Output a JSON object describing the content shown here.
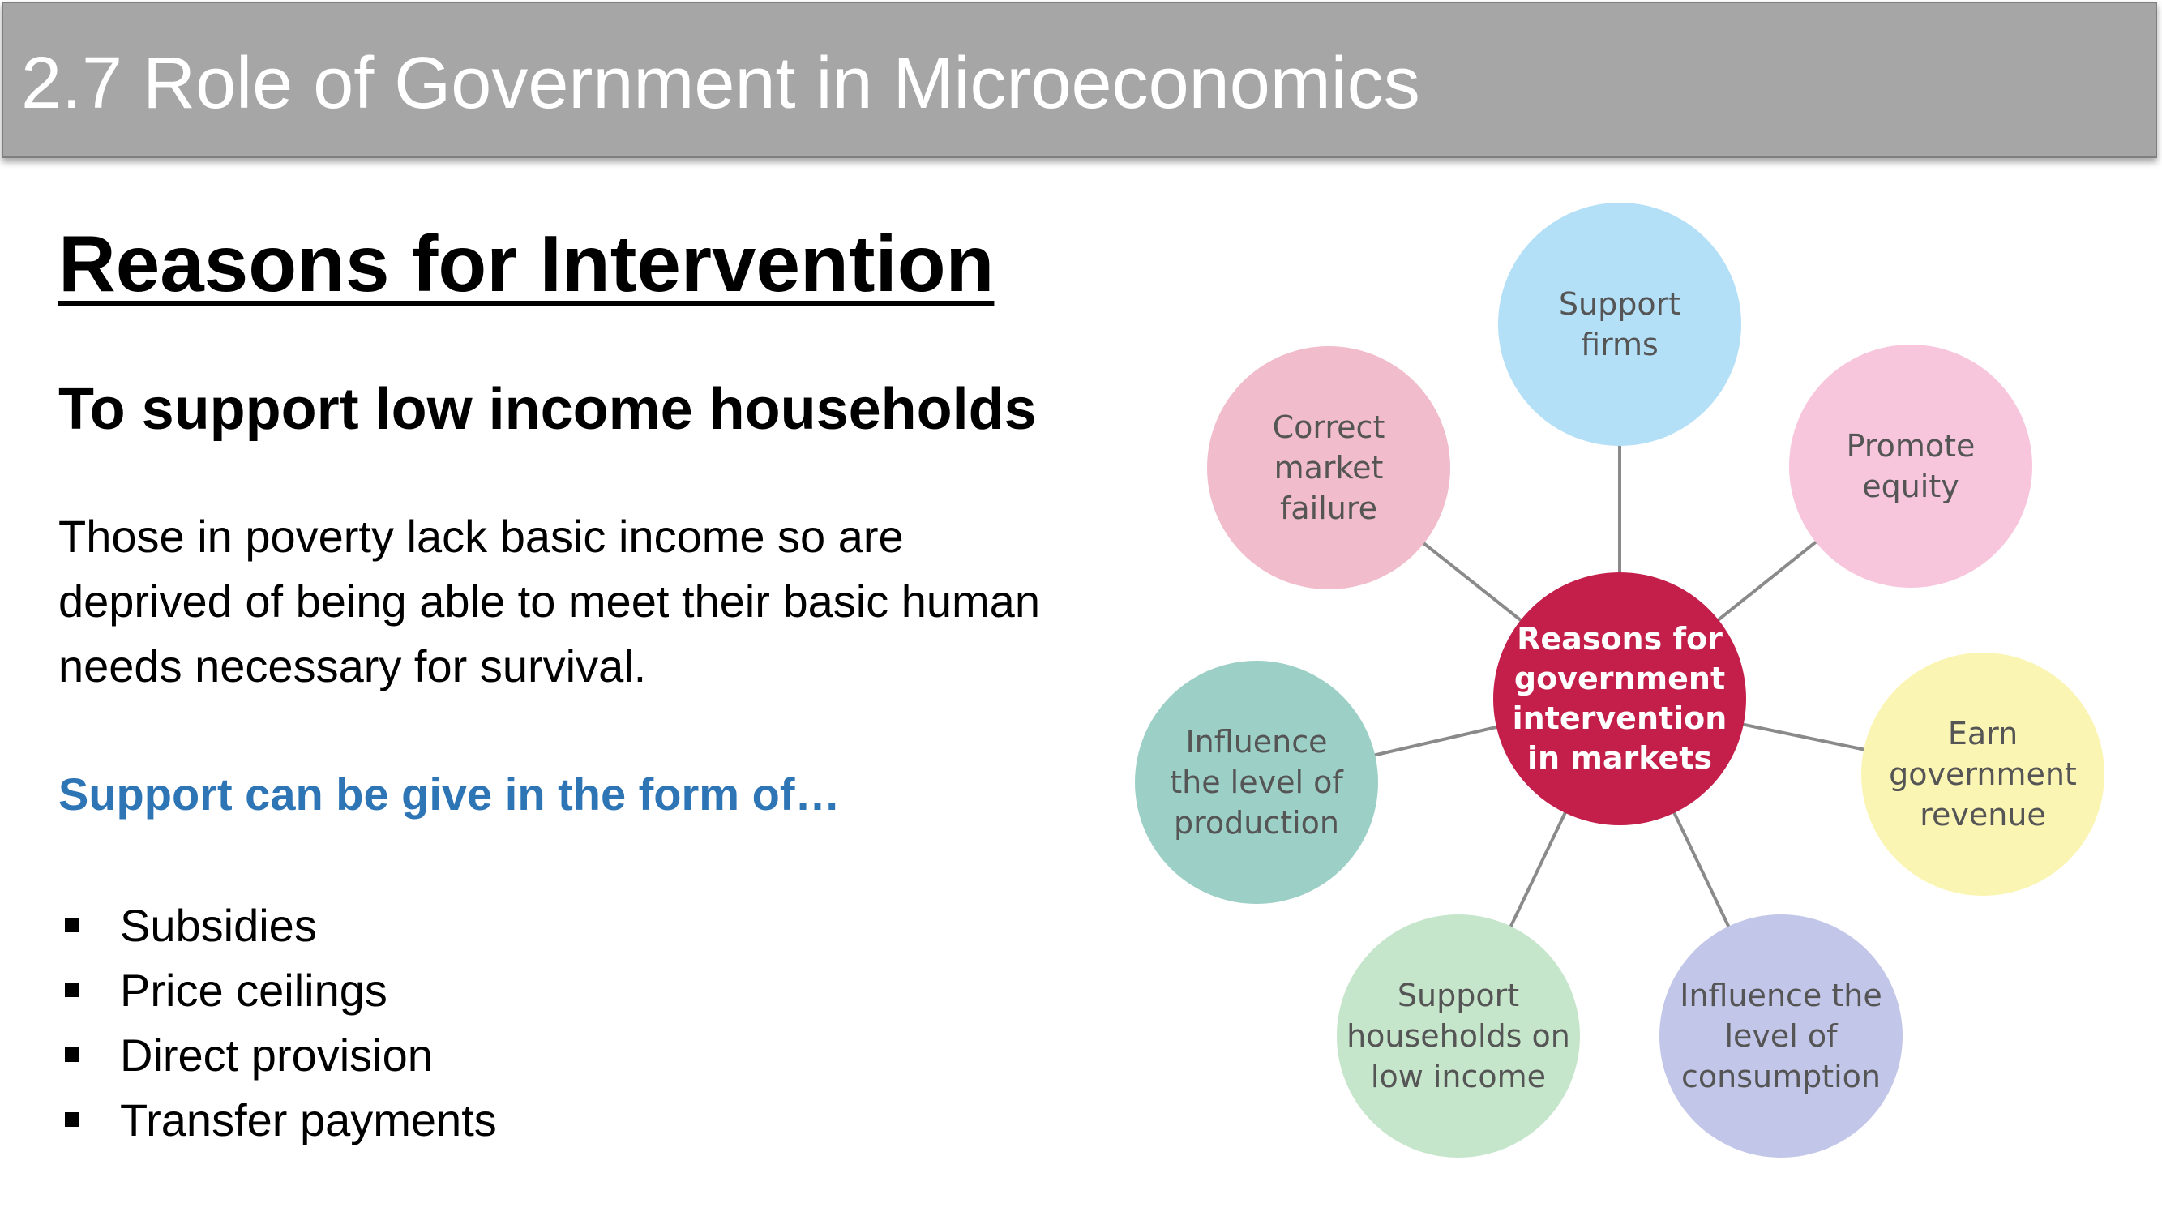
{
  "header": {
    "title": "2.7 Role of Government in Microeconomics"
  },
  "content": {
    "heading": "Reasons for Intervention",
    "subheading": "To support low income households",
    "paragraph": "Those in poverty lack basic income so are deprived of being able to meet their basic human needs necessary for survival.",
    "support_line": "Support can be give in the form of…",
    "bullets": [
      "Subsidies",
      "Price ceilings",
      "Direct provision",
      "Transfer payments"
    ]
  },
  "diagram": {
    "center": {
      "label": "Reasons for\ngovernment\nintervention\nin markets",
      "color": "#c41e4a"
    },
    "nodes": [
      {
        "label": "Support\nfirms",
        "color": "#b3e0f7"
      },
      {
        "label": "Promote\nequity",
        "color": "#f7c6dc"
      },
      {
        "label": "Earn\ngovernment\nrevenue",
        "color": "#fbf5b4"
      },
      {
        "label": "Influence the\nlevel of\nconsumption",
        "color": "#c2c6e8"
      },
      {
        "label": "Support\nhouseholds on\nlow income",
        "color": "#c6e6cc"
      },
      {
        "label": "Influence\nthe level of\nproduction",
        "color": "#9ccfc6"
      },
      {
        "label": "Correct\nmarket\nfailure",
        "color": "#f1bccb"
      }
    ],
    "connector_color": "#8a8a8a"
  }
}
